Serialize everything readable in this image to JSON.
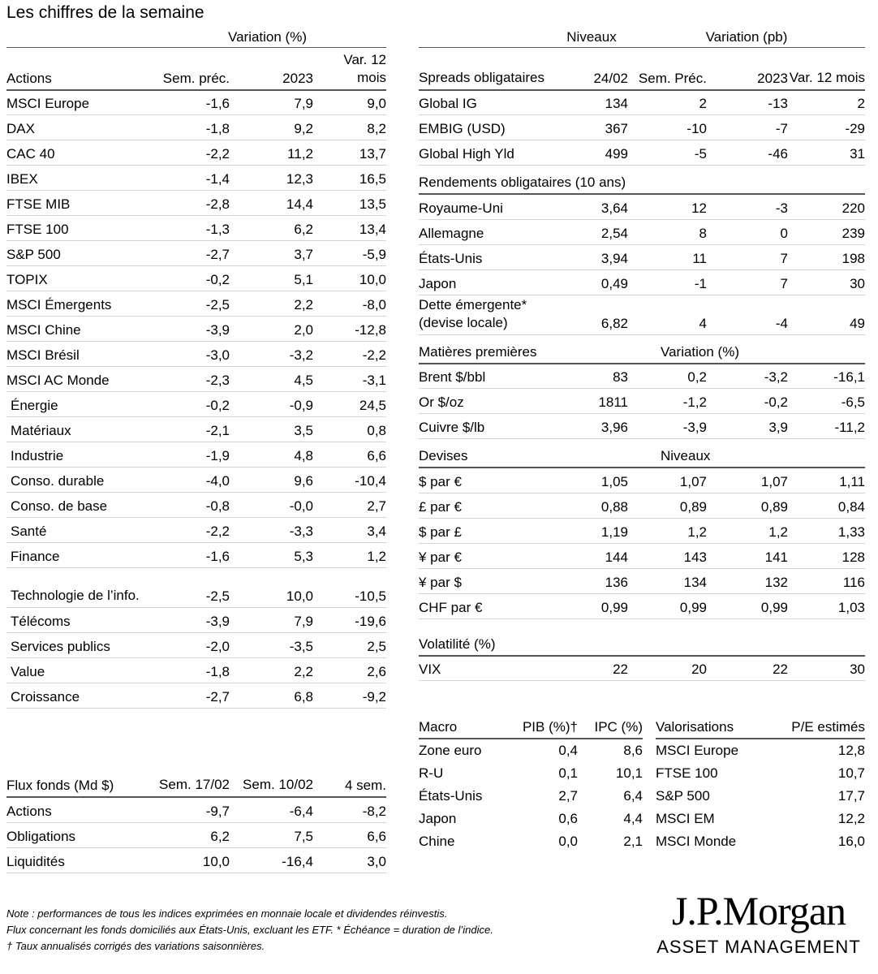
{
  "title": "Les chiffres de la semaine",
  "equities": {
    "group_header": "Variation (%)",
    "headers": [
      "Actions",
      "Sem. préc.",
      "2023",
      "Var. 12 mois"
    ],
    "rows": [
      [
        "MSCI Europe",
        "-1,6",
        "7,9",
        "9,0"
      ],
      [
        "DAX",
        "-1,8",
        "9,2",
        "8,2"
      ],
      [
        "CAC 40",
        "-2,2",
        "11,2",
        "13,7"
      ],
      [
        "IBEX",
        "-1,4",
        "12,3",
        "16,5"
      ],
      [
        "FTSE MIB",
        "-2,8",
        "14,4",
        "13,5"
      ],
      [
        "FTSE 100",
        "-1,3",
        "6,2",
        "13,4"
      ],
      [
        "S&P 500",
        "-2,7",
        "3,7",
        "-5,9"
      ],
      [
        "TOPIX",
        "-0,2",
        "5,1",
        "10,0"
      ],
      [
        "MSCI Émergents",
        "-2,5",
        "2,2",
        "-8,0"
      ],
      [
        "MSCI Chine",
        "-3,9",
        "2,0",
        "-12,8"
      ],
      [
        "MSCI Brésil",
        "-3,0",
        "-3,2",
        "-2,2"
      ],
      [
        "MSCI AC Monde",
        "-2,3",
        "4,5",
        "-3,1"
      ],
      [
        "Énergie",
        "-0,2",
        "-0,9",
        "24,5"
      ],
      [
        "Matériaux",
        "-2,1",
        "3,5",
        "0,8"
      ],
      [
        "Industrie",
        "-1,9",
        "4,8",
        "6,6"
      ],
      [
        "Conso. durable",
        "-4,0",
        "9,6",
        "-10,4"
      ],
      [
        "Conso. de base",
        "-0,8",
        "-0,0",
        "2,7"
      ],
      [
        "Santé",
        "-2,2",
        "-3,3",
        "3,4"
      ],
      [
        "Finance",
        "-1,6",
        "5,3",
        "1,2"
      ],
      [
        "Technologie de l’info.",
        "-2,5",
        "10,0",
        "-10,5"
      ],
      [
        "Télécoms",
        "-3,9",
        "7,9",
        "-19,6"
      ],
      [
        "Services publics",
        "-2,0",
        "-3,5",
        "2,5"
      ],
      [
        "Value",
        "-1,8",
        "2,2",
        "2,6"
      ],
      [
        "Croissance",
        "-2,7",
        "6,8",
        "-9,2"
      ]
    ]
  },
  "flows": {
    "headers": [
      "Flux fonds (Md $)",
      "Sem. 17/02",
      "Sem. 10/02",
      "4 sem."
    ],
    "rows": [
      [
        "Actions",
        "-9,7",
        "-6,4",
        "-8,2"
      ],
      [
        "Obligations",
        "6,2",
        "7,5",
        "6,6"
      ],
      [
        "Liquidités",
        "10,0",
        "-16,4",
        "3,0"
      ]
    ]
  },
  "bonds": {
    "group_levels": "Niveaux",
    "group_variation": "Variation (pb)",
    "headers": [
      "Spreads obligataires",
      "24/02",
      "Sem. Préc.",
      "2023",
      "Var. 12 mois"
    ],
    "spreads": [
      [
        "Global IG",
        "134",
        "2",
        "-13",
        "2"
      ],
      [
        "EMBIG (USD)",
        "367",
        "-10",
        "-7",
        "-29"
      ],
      [
        "Global High Yld",
        "499",
        "-5",
        "-46",
        "31"
      ]
    ],
    "yields_title": "Rendements obligataires (10 ans)",
    "yields": [
      [
        "Royaume-Uni",
        "3,64",
        "12",
        "-3",
        "220"
      ],
      [
        "Allemagne",
        "2,54",
        "8",
        "0",
        "239"
      ],
      [
        "États-Unis",
        "3,94",
        "11",
        "7",
        "198"
      ],
      [
        "Japon",
        "0,49",
        "-1",
        "7",
        "30"
      ],
      [
        "Dette émergente* (devise locale)",
        "6,82",
        "4",
        "-4",
        "49"
      ]
    ],
    "commodities_title": "Matières premières",
    "commodities_sub": "Variation (%)",
    "commodities": [
      [
        "Brent $/bbl",
        "83",
        "0,2",
        "-3,2",
        "-16,1"
      ],
      [
        "Or $/oz",
        "1811",
        "-1,2",
        "-0,2",
        "-6,5"
      ],
      [
        "Cuivre $/lb",
        "3,96",
        "-3,9",
        "3,9",
        "-11,2"
      ]
    ],
    "fx_title": "Devises",
    "fx_sub": "Niveaux",
    "fx": [
      [
        "$ par €",
        "1,05",
        "1,07",
        "1,07",
        "1,11"
      ],
      [
        "£ par €",
        "0,88",
        "0,89",
        "0,89",
        "0,84"
      ],
      [
        "$ par £",
        "1,19",
        "1,2",
        "1,2",
        "1,33"
      ],
      [
        "¥ par €",
        "144",
        "143",
        "141",
        "128"
      ],
      [
        "¥ par $",
        "136",
        "134",
        "132",
        "116"
      ],
      [
        "CHF par €",
        "0,99",
        "0,99",
        "0,99",
        "1,03"
      ]
    ],
    "vol_title": "Volatilité (%)",
    "vol": [
      [
        "VIX",
        "22",
        "20",
        "22",
        "30"
      ]
    ]
  },
  "macro": {
    "headers": [
      "Macro",
      "PIB (%)†",
      "IPC (%)"
    ],
    "rows": [
      [
        "Zone euro",
        "0,4",
        "8,6"
      ],
      [
        "R-U",
        "0,1",
        "10,1"
      ],
      [
        "États-Unis",
        "2,7",
        "6,4"
      ],
      [
        "Japon",
        "0,6",
        "4,4"
      ],
      [
        "Chine",
        "0,0",
        "2,1"
      ]
    ]
  },
  "valuations": {
    "headers": [
      "Valorisations",
      "P/E estimés"
    ],
    "rows": [
      [
        "MSCI Europe",
        "12,8"
      ],
      [
        "FTSE 100",
        "10,7"
      ],
      [
        "S&P 500",
        "17,7"
      ],
      [
        "MSCI EM",
        "12,2"
      ],
      [
        "MSCI Monde",
        "16,0"
      ]
    ]
  },
  "notes": [
    "Note : performances de tous les indices exprimées en monnaie locale et dividendes réinvestis.",
    "Flux concernant les fonds domiciliés aux États-Unis, excluant les ETF. * Échéance = duration de l’indice.",
    "† Taux annualisés corrigés des variations saisonnières."
  ],
  "logo": {
    "name": "J.P.Morgan",
    "sub": "ASSET MANAGEMENT"
  }
}
